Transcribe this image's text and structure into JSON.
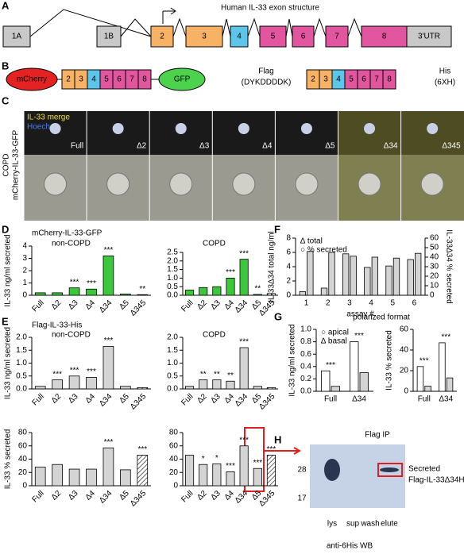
{
  "panels": {
    "letters": [
      "A",
      "B",
      "C",
      "D",
      "E",
      "F",
      "G",
      "H"
    ],
    "A": {
      "title": "Human IL-33 exon structure",
      "exons": [
        "1A",
        "1B",
        "2",
        "3",
        "4",
        "5",
        "6",
        "7",
        "8",
        "3'UTR"
      ]
    },
    "B": {
      "left_tag": "mCherry",
      "right_tag": "GFP",
      "exons": [
        "2",
        "3",
        "4",
        "5",
        "6",
        "7",
        "8"
      ],
      "flag": "Flag",
      "flag_seq": "(DYKDDDDK)",
      "his": "His",
      "his_seq": "(6XH)"
    },
    "C": {
      "merge": "IL-33 merge",
      "hoechst": "Hoechst",
      "group": "COPD",
      "construct": "mCherry-IL-33-GFP",
      "images": [
        "Full",
        "Δ2",
        "Δ3",
        "Δ4",
        "Δ5",
        "Δ34",
        "Δ345"
      ]
    },
    "D": {
      "header": "mCherry-IL-33-GFP"
    },
    "E": {
      "header": "Flag-IL-33-His"
    },
    "G": {
      "header": "polarized format"
    },
    "H": {
      "title": "Flag IP",
      "markers": [
        "28",
        "17"
      ],
      "lanes": [
        "lys",
        "sup",
        "wash",
        "elute"
      ],
      "blot": "anti-6His WB",
      "note1": "Secreted",
      "note2": "Flag-IL-33Δ34His"
    }
  },
  "chart_data": [
    {
      "type": "bar",
      "title": "non-COPD",
      "ylabel": "IL-33 ng/ml secreted",
      "categories": [
        "Full",
        "Δ2",
        "Δ3",
        "Δ4",
        "Δ34",
        "Δ5",
        "Δ345"
      ],
      "values": [
        0.2,
        0.2,
        0.6,
        0.5,
        3.2,
        0.1,
        0.05
      ],
      "color": "#3cc83c",
      "hatched": [
        false,
        false,
        false,
        false,
        false,
        false,
        true
      ],
      "ylim": [
        0,
        4
      ],
      "yticks": [
        0,
        1,
        2,
        3,
        4
      ],
      "annotations": [
        null,
        null,
        "***",
        "***",
        "***",
        null,
        "**"
      ]
    },
    {
      "type": "bar",
      "title": "COPD",
      "categories": [
        "Full",
        "Δ2",
        "Δ3",
        "Δ4",
        "Δ34",
        "Δ5",
        "Δ345"
      ],
      "values": [
        0.3,
        0.45,
        0.5,
        1.0,
        2.1,
        0.05,
        0.1
      ],
      "color": "#3cc83c",
      "hatched": [
        false,
        false,
        false,
        false,
        false,
        false,
        true
      ],
      "ylim": [
        0,
        2.5
      ],
      "yticks": [
        {
          "value": 0,
          "label": "0.0"
        },
        0.5,
        {
          "value": 1,
          "label": "1.0"
        },
        1.5,
        {
          "value": 2,
          "label": "2.0"
        },
        2.5
      ],
      "annotations": [
        null,
        null,
        null,
        "***",
        "***",
        "**",
        null
      ]
    },
    {
      "type": "bar",
      "title": "non-COPD",
      "ylabel": "IL-33 ng/ml secreted",
      "categories": [
        "Full",
        "Δ2",
        "Δ3",
        "Δ4",
        "Δ34",
        "Δ5",
        "Δ345"
      ],
      "values": [
        0.1,
        0.35,
        0.5,
        0.45,
        1.65,
        0.1,
        0.05
      ],
      "color": "#d4d4d4",
      "hatched": [
        false,
        false,
        false,
        false,
        false,
        false,
        true
      ],
      "ylim": [
        0,
        2
      ],
      "yticks": [
        {
          "value": 0,
          "label": "0.0"
        },
        0.5,
        {
          "value": 1,
          "label": "1.0"
        },
        1.5,
        {
          "value": 2,
          "label": "2.0"
        }
      ],
      "annotations": [
        null,
        "***",
        "***",
        "***",
        "***",
        null,
        null
      ]
    },
    {
      "type": "bar",
      "title": "COPD",
      "categories": [
        "Full",
        "Δ2",
        "Δ3",
        "Δ4",
        "Δ34",
        "Δ5",
        "Δ345"
      ],
      "values": [
        0.1,
        0.35,
        0.35,
        0.3,
        1.6,
        0.1,
        0.05
      ],
      "color": "#d4d4d4",
      "hatched": [
        false,
        false,
        false,
        false,
        false,
        false,
        true
      ],
      "ylim": [
        0,
        2
      ],
      "yticks": [
        {
          "value": 0,
          "label": "0.0"
        },
        0.5,
        {
          "value": 1,
          "label": "1.0"
        },
        1.5,
        {
          "value": 2,
          "label": "2.0"
        }
      ],
      "annotations": [
        null,
        "**",
        "**",
        "**",
        "***",
        null,
        null
      ]
    },
    {
      "type": "bar",
      "ylabel": "IL-33 % secreted",
      "categories": [
        "Full",
        "Δ2",
        "Δ3",
        "Δ4",
        "Δ34",
        "Δ5",
        "Δ345"
      ],
      "values": [
        28,
        32,
        25,
        25,
        57,
        24,
        46
      ],
      "color": "#d4d4d4",
      "hatched": [
        false,
        false,
        false,
        false,
        false,
        false,
        true
      ],
      "ylim": [
        0,
        80
      ],
      "yticks": [
        0,
        20,
        40,
        60,
        80
      ],
      "annotations": [
        null,
        null,
        null,
        null,
        "***",
        null,
        "***"
      ]
    },
    {
      "type": "bar",
      "categories": [
        "Full",
        "Δ2",
        "Δ3",
        "Δ4",
        "Δ34",
        "Δ5",
        "Δ345"
      ],
      "values": [
        46,
        32,
        33,
        21,
        60,
        26,
        46
      ],
      "color": "#d4d4d4",
      "hatched": [
        false,
        false,
        false,
        false,
        false,
        false,
        true
      ],
      "ylim": [
        0,
        80
      ],
      "yticks": [
        0,
        20,
        40,
        60,
        80
      ],
      "annotations": [
        null,
        "*",
        "*",
        "***",
        "***",
        "***",
        "***"
      ]
    },
    {
      "type": "bar",
      "ylabel": "IL-33Δ34 total ng/ml",
      "y2label": "IL-33Δ34 % secreted",
      "xlabel": "assay #",
      "categories": [
        "1",
        "2",
        "3",
        "4",
        "5",
        "6"
      ],
      "series": [
        {
          "name": "∆ total",
          "color": "#d4d4d4",
          "values": [
            0.5,
            1.0,
            5.8,
            3.9,
            4.1,
            5.0
          ]
        },
        {
          "name": "○ % secreted",
          "color": "#d4d4d4",
          "axis": "y2",
          "values": [
            46,
            45,
            41,
            40,
            39,
            44
          ]
        }
      ],
      "ylim": [
        0,
        8
      ],
      "yticks": [
        0,
        2,
        4,
        6,
        8
      ],
      "y2lim": [
        0,
        60
      ],
      "y2ticks": [
        0,
        10,
        20,
        30,
        40,
        50,
        60
      ]
    },
    {
      "type": "bar",
      "ylabel": "IL-33 ng/ml secreted",
      "categories": [
        "Full",
        "Δ34"
      ],
      "series": [
        {
          "name": "○ apical",
          "color": "#ffffff",
          "values": [
            0.33,
            0.8
          ]
        },
        {
          "name": "∆ basal",
          "color": "#d4d4d4",
          "values": [
            0.08,
            0.3
          ]
        }
      ],
      "ylim": [
        0,
        1
      ],
      "yticks": [
        {
          "value": 0,
          "label": "0.0"
        },
        0.2,
        0.4,
        0.6,
        0.8,
        {
          "value": 1,
          "label": "1.0"
        }
      ],
      "annotations": [
        "***",
        "***"
      ]
    },
    {
      "type": "bar",
      "ylabel": "IL-33 % secreted",
      "categories": [
        "Full",
        "Δ34"
      ],
      "series": [
        {
          "name": "apical",
          "color": "#ffffff",
          "values": [
            24,
            47
          ]
        },
        {
          "name": "basal",
          "color": "#d4d4d4",
          "values": [
            5,
            13
          ]
        }
      ],
      "ylim": [
        0,
        60
      ],
      "yticks": [
        0,
        20,
        40,
        60
      ],
      "annotations": [
        "***",
        "***"
      ]
    }
  ]
}
